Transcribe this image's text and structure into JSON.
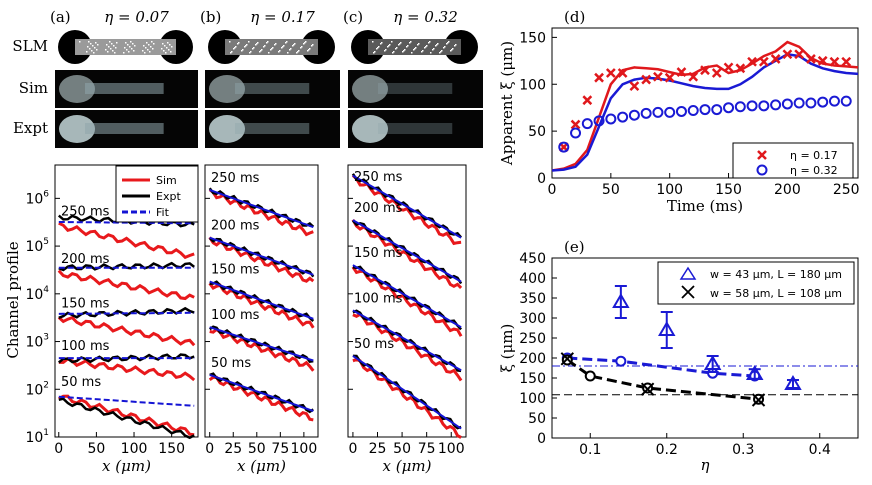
{
  "colors": {
    "sim": "#e8191c",
    "expt": "#000000",
    "fit": "#1414d4",
    "blue": "#1a1ad4",
    "red": "#e0181c",
    "black": "#000000"
  },
  "top_panels": [
    {
      "tag": "(a)",
      "eta": "η = 0.07",
      "shade": "#9a9a9a"
    },
    {
      "tag": "(b)",
      "eta": "η = 0.17",
      "shade": "#7a7a7a"
    },
    {
      "tag": "(c)",
      "eta": "η = 0.32",
      "shade": "#5a5a5a"
    }
  ],
  "row_labels": {
    "slm": "SLM",
    "sim": "Sim",
    "expt": "Expt"
  },
  "chart_data": [
    {
      "type": "line",
      "panel": "(a)",
      "ylabel": "Channel profile",
      "xlabel": "x (μm)",
      "yscale": "log",
      "ylim": [
        10,
        5000000
      ],
      "xlim": [
        -5,
        185
      ],
      "xticks": [
        0,
        50,
        100,
        150
      ],
      "yticks": [
        "10^1",
        "10^2",
        "10^3",
        "10^4",
        "10^5",
        "10^6"
      ],
      "legend": [
        {
          "name": "Sim"
        },
        {
          "name": "Expt"
        },
        {
          "name": "Fit"
        }
      ],
      "curve_labels": [
        "250 ms",
        "200 ms",
        "150 ms",
        "100 ms",
        "50 ms"
      ],
      "profiles": [
        {
          "label": "250 ms",
          "sim": [
            [
              0,
              300000
            ],
            [
              175,
              60000
            ]
          ],
          "expt": [
            [
              0,
              400000
            ],
            [
              175,
              280000
            ]
          ],
          "fit": [
            [
              0,
              320000
            ],
            [
              175,
              300000
            ]
          ]
        },
        {
          "label": "200 ms",
          "sim": [
            [
              0,
              30000
            ],
            [
              175,
              8000
            ]
          ],
          "expt": [
            [
              0,
              35000
            ],
            [
              175,
              40000
            ]
          ],
          "fit": [
            [
              0,
              35000
            ],
            [
              175,
              35000
            ]
          ]
        },
        {
          "label": "150 ms",
          "sim": [
            [
              0,
              3500
            ],
            [
              175,
              900
            ]
          ],
          "expt": [
            [
              0,
              3500
            ],
            [
              175,
              4500
            ]
          ],
          "fit": [
            [
              0,
              3800
            ],
            [
              175,
              4000
            ]
          ]
        },
        {
          "label": "100 ms",
          "sim": [
            [
              0,
              450
            ],
            [
              175,
              180
            ]
          ],
          "expt": [
            [
              0,
              400
            ],
            [
              175,
              500
            ]
          ],
          "fit": [
            [
              0,
              450
            ],
            [
              175,
              450
            ]
          ]
        },
        {
          "label": "50 ms",
          "sim": [
            [
              0,
              80
            ],
            [
              120,
              50
            ],
            [
              175,
              12
            ]
          ],
          "expt": [
            [
              0,
              60
            ],
            [
              120,
              40
            ],
            [
              175,
              10
            ]
          ],
          "fit": [
            [
              0,
              70
            ],
            [
              175,
              45
            ]
          ]
        }
      ]
    },
    {
      "type": "line",
      "panel": "(b)",
      "xlabel": "x (μm)",
      "yscale": "log",
      "ylim": [
        10,
        5000000
      ],
      "xlim": [
        -5,
        115
      ],
      "xticks": [
        0,
        25,
        50,
        75,
        100
      ],
      "curve_labels": [
        "250 ms",
        "200 ms",
        "150 ms",
        "100 ms",
        "50 ms"
      ],
      "profiles": [
        {
          "label": "250 ms",
          "start": 1500000,
          "end": 250000
        },
        {
          "label": "200 ms",
          "start": 150000,
          "end": 25000
        },
        {
          "label": "150 ms",
          "start": 18000,
          "end": 3000
        },
        {
          "label": "100 ms",
          "start": 2000,
          "end": 400
        },
        {
          "label": "50 ms",
          "start": 200,
          "end": 35
        }
      ]
    },
    {
      "type": "line",
      "panel": "(c)",
      "xlabel": "x (μm)",
      "yscale": "log",
      "ylim": [
        10,
        5000000
      ],
      "xlim": [
        -5,
        115
      ],
      "xticks": [
        0,
        25,
        50,
        75,
        100
      ],
      "curve_labels": [
        "250 ms",
        "200 ms",
        "150 ms",
        "100 ms",
        "50 ms"
      ],
      "profiles": [
        {
          "label": "250 ms",
          "start": 3000000,
          "end": 150000
        },
        {
          "label": "200 ms",
          "start": 350000,
          "end": 18000
        },
        {
          "label": "150 ms",
          "start": 40000,
          "end": 2000
        },
        {
          "label": "100 ms",
          "start": 4500,
          "end": 250
        },
        {
          "label": "50 ms",
          "start": 500,
          "end": 15
        }
      ]
    },
    {
      "type": "line",
      "panel": "(d)",
      "xlabel": "Time (ms)",
      "ylabel": "Apparent ξ (μm)",
      "xlim": [
        0,
        260
      ],
      "ylim": [
        0,
        160
      ],
      "xticks": [
        0,
        50,
        100,
        150,
        200,
        250
      ],
      "yticks": [
        0,
        50,
        100,
        150
      ],
      "series": [
        {
          "name": "η = 0.17",
          "marker": "x",
          "x": [
            10,
            20,
            30,
            40,
            50,
            60,
            70,
            80,
            90,
            100,
            110,
            120,
            130,
            140,
            150,
            160,
            170,
            180,
            190,
            200,
            210,
            220,
            230,
            240,
            250
          ],
          "y": [
            33,
            57,
            83,
            107,
            112,
            112,
            98,
            105,
            108,
            107,
            113,
            108,
            115,
            112,
            118,
            117,
            124,
            124,
            127,
            132,
            132,
            127,
            125,
            124,
            124
          ]
        },
        {
          "name": "η = 0.32",
          "marker": "o",
          "x": [
            10,
            20,
            30,
            40,
            50,
            60,
            70,
            80,
            90,
            100,
            110,
            120,
            130,
            140,
            150,
            160,
            170,
            180,
            190,
            200,
            210,
            220,
            230,
            240,
            250
          ],
          "y": [
            33,
            48,
            58,
            61,
            63,
            65,
            67,
            69,
            70,
            70,
            71,
            72,
            73,
            73,
            75,
            76,
            77,
            77,
            78,
            79,
            80,
            80,
            81,
            82,
            82
          ]
        },
        {
          "name": "sim-0.17",
          "line": true,
          "x": [
            0,
            10,
            20,
            30,
            40,
            50,
            60,
            70,
            80,
            90,
            100,
            110,
            120,
            130,
            140,
            150,
            160,
            170,
            180,
            190,
            200,
            210,
            220,
            230,
            240,
            250,
            260
          ],
          "y": [
            8,
            10,
            15,
            30,
            65,
            100,
            115,
            118,
            117,
            116,
            113,
            110,
            111,
            118,
            120,
            112,
            115,
            122,
            130,
            135,
            145,
            140,
            128,
            122,
            120,
            119,
            118
          ]
        },
        {
          "name": "sim-0.32",
          "line": true,
          "x": [
            0,
            10,
            20,
            30,
            40,
            50,
            60,
            70,
            80,
            90,
            100,
            110,
            120,
            130,
            140,
            150,
            160,
            170,
            180,
            190,
            200,
            210,
            220,
            230,
            240,
            250,
            260
          ],
          "y": [
            8,
            9,
            12,
            25,
            55,
            85,
            100,
            105,
            107,
            106,
            104,
            101,
            98,
            96,
            95,
            95,
            100,
            108,
            118,
            125,
            132,
            130,
            122,
            117,
            114,
            112,
            111
          ]
        }
      ]
    },
    {
      "type": "scatter",
      "panel": "(e)",
      "xlabel": "η",
      "ylabel": "ξ (μm)",
      "xlim": [
        0.05,
        0.45
      ],
      "ylim": [
        0,
        450
      ],
      "xticks": [
        0.1,
        0.2,
        0.3,
        0.4
      ],
      "yticks": [
        0,
        50,
        100,
        150,
        200,
        250,
        300,
        350,
        400,
        450
      ],
      "legend": [
        {
          "name": "w = 43 μm, L = 180 μm"
        },
        {
          "name": "w = 58 μm, L = 108 μm"
        }
      ],
      "series": [
        {
          "name": "w = 43 μm, L = 180 μm",
          "marker": "triangle",
          "x": [
            0.14,
            0.2,
            0.26,
            0.315,
            0.365
          ],
          "y": [
            340,
            270,
            185,
            160,
            135
          ],
          "err": [
            40,
            45,
            20,
            12,
            10
          ]
        },
        {
          "name": "w = 58 μm, L = 108 μm",
          "marker": "x",
          "x": [
            0.07,
            0.175,
            0.32
          ],
          "y": [
            198,
            122,
            95
          ],
          "err": [
            5,
            8,
            12
          ]
        },
        {
          "name": "blue-dashed",
          "marker": "o",
          "x": [
            0.07,
            0.14,
            0.26,
            0.315
          ],
          "y": [
            200,
            192,
            162,
            155
          ]
        },
        {
          "name": "black-dashed",
          "marker": "o",
          "x": [
            0.07,
            0.1,
            0.175,
            0.32
          ],
          "y": [
            195,
            155,
            125,
            97
          ]
        }
      ],
      "hlines": [
        {
          "y": 180,
          "color": "blue"
        },
        {
          "y": 108,
          "color": "black"
        }
      ]
    }
  ]
}
